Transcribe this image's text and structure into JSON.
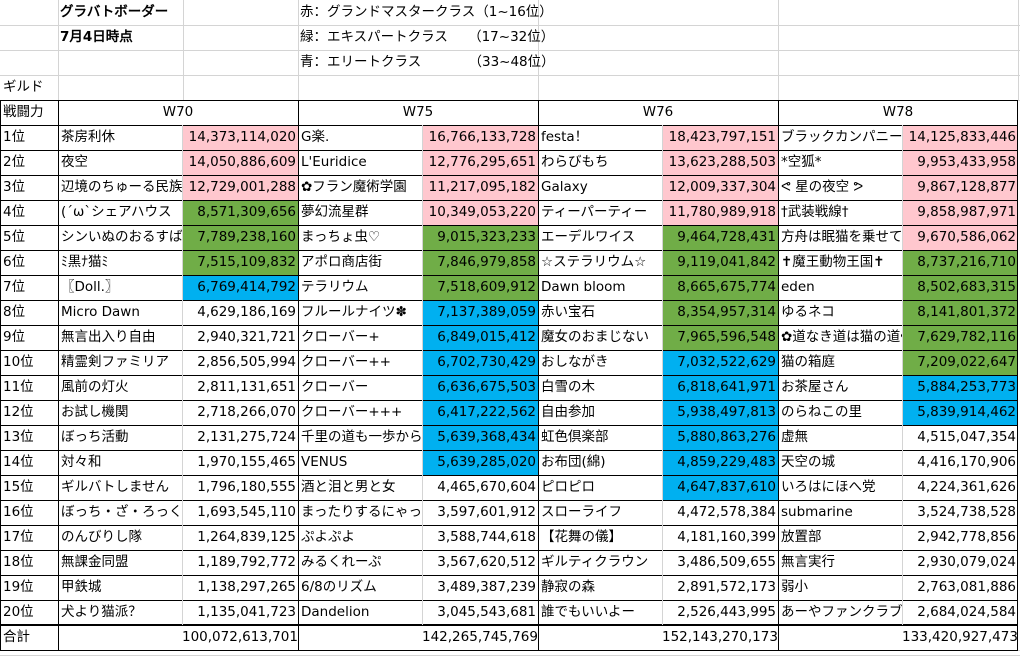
{
  "header": {
    "title": "グラバトボーダー",
    "date": "7月4日時点",
    "legend": [
      {
        "label": "赤：グランドマスタークラス（1~16位）"
      },
      {
        "label": "緑：エキスパートクラス　　（17~32位）"
      },
      {
        "label": "青：エリートクラス　　　　（33~48位）"
      }
    ]
  },
  "guild_label": "ギルド",
  "power_label": "戦闘力",
  "total_label": "合計",
  "columns": [
    "W70",
    "W75",
    "W76",
    "W78"
  ],
  "ranks": [
    "1位",
    "2位",
    "3位",
    "4位",
    "5位",
    "6位",
    "7位",
    "8位",
    "9位",
    "10位",
    "11位",
    "12位",
    "13位",
    "14位",
    "15位",
    "16位",
    "17位",
    "18位",
    "19位",
    "20位"
  ],
  "colors": {
    "red": "#ffc7ce",
    "green": "#70ad47",
    "blue": "#00b0f0"
  },
  "tables": [
    {
      "world": "W70",
      "rows": [
        {
          "name": "茶房利休",
          "value": "14,373,114,020",
          "tier": "red"
        },
        {
          "name": "夜空",
          "value": "14,050,886,609",
          "tier": "red"
        },
        {
          "name": "辺境のちゅーる民族",
          "value": "12,729,001,288",
          "tier": "red"
        },
        {
          "name": "(´ω`シェアハウス",
          "value": "8,571,309,656",
          "tier": "green"
        },
        {
          "name": "シンいぬのおるすばん",
          "value": "7,789,238,160",
          "tier": "green"
        },
        {
          "name": "ﾐ黒ﾅ猫ﾐ",
          "value": "7,515,109,832",
          "tier": "green"
        },
        {
          "name": "〖Doll.〗",
          "value": "6,769,414,792",
          "tier": "blue"
        },
        {
          "name": "Micro Dawn",
          "value": "4,629,186,169",
          "tier": ""
        },
        {
          "name": "無言出入り自由",
          "value": "2,940,321,721",
          "tier": ""
        },
        {
          "name": "精霊剣ファミリア",
          "value": "2,856,505,994",
          "tier": ""
        },
        {
          "name": "風前の灯火",
          "value": "2,811,131,651",
          "tier": ""
        },
        {
          "name": "お試し機関",
          "value": "2,718,266,070",
          "tier": ""
        },
        {
          "name": "ぼっち活動",
          "value": "2,131,275,724",
          "tier": ""
        },
        {
          "name": "対々和",
          "value": "1,970,155,465",
          "tier": ""
        },
        {
          "name": "ギルバトしません",
          "value": "1,796,180,555",
          "tier": ""
        },
        {
          "name": "ぼっち・ざ・ろっく再",
          "value": "1,693,545,110",
          "tier": ""
        },
        {
          "name": "のんびりし隊",
          "value": "1,264,839,125",
          "tier": ""
        },
        {
          "name": "無課金同盟",
          "value": "1,189,792,772",
          "tier": ""
        },
        {
          "name": "甲鉄城",
          "value": "1,138,297,265",
          "tier": ""
        },
        {
          "name": "犬より猫派？",
          "value": "1,135,041,723",
          "tier": ""
        }
      ],
      "total": "100,072,613,701"
    },
    {
      "world": "W75",
      "rows": [
        {
          "name": "G楽.",
          "value": "16,766,133,728",
          "tier": "red"
        },
        {
          "name": "L'Euridice",
          "value": "12,776,295,651",
          "tier": "red"
        },
        {
          "name": "✿フラン魔術学園",
          "value": "11,217,095,182",
          "tier": "red"
        },
        {
          "name": "夢幻流星群",
          "value": "10,349,053,220",
          "tier": "red"
        },
        {
          "name": "まっちょ虫♡",
          "value": "9,015,323,233",
          "tier": "green"
        },
        {
          "name": "アポロ商店街",
          "value": "7,846,979,858",
          "tier": "green"
        },
        {
          "name": "テラリウム",
          "value": "7,518,609,912",
          "tier": "green"
        },
        {
          "name": "フルールナイツ✽",
          "value": "7,137,389,059",
          "tier": "blue"
        },
        {
          "name": "クローバー+",
          "value": "6,849,015,412",
          "tier": "blue"
        },
        {
          "name": "クローバー++",
          "value": "6,702,730,429",
          "tier": "blue"
        },
        {
          "name": "クローバー",
          "value": "6,636,675,503",
          "tier": "blue"
        },
        {
          "name": "クローバー+++",
          "value": "6,417,222,562",
          "tier": "blue"
        },
        {
          "name": "千里の道も一歩から",
          "value": "5,639,368,434",
          "tier": "blue"
        },
        {
          "name": "VENUS",
          "value": "5,639,285,020",
          "tier": "blue"
        },
        {
          "name": "酒と泪と男と女",
          "value": "4,465,670,604",
          "tier": ""
        },
        {
          "name": "まったりするにゃっ♪",
          "value": "3,597,601,912",
          "tier": ""
        },
        {
          "name": "ぷよぷよ",
          "value": "3,588,744,618",
          "tier": ""
        },
        {
          "name": "みるくれーぷ",
          "value": "3,567,620,512",
          "tier": ""
        },
        {
          "name": "6/8のリズム",
          "value": "3,489,387,239",
          "tier": ""
        },
        {
          "name": "Dandelion",
          "value": "3,045,543,681",
          "tier": ""
        }
      ],
      "total": "142,265,745,769"
    },
    {
      "world": "W76",
      "rows": [
        {
          "name": "festa！",
          "value": "18,423,797,151",
          "tier": "red"
        },
        {
          "name": "わらびもち",
          "value": "13,623,288,503",
          "tier": "red"
        },
        {
          "name": "Galaxy",
          "value": "12,009,337,304",
          "tier": "red"
        },
        {
          "name": "ティーパーティー",
          "value": "11,780,989,918",
          "tier": "red"
        },
        {
          "name": "エーデルワイス",
          "value": "9,464,728,431",
          "tier": "green"
        },
        {
          "name": "☆ステラリウム☆",
          "value": "9,119,041,842",
          "tier": "green"
        },
        {
          "name": "Dawn bloom",
          "value": "8,665,675,774",
          "tier": "green"
        },
        {
          "name": "赤い宝石",
          "value": "8,354,957,314",
          "tier": "green"
        },
        {
          "name": "魔女のおまじない",
          "value": "7,965,596,548",
          "tier": "green"
        },
        {
          "name": "おしながき",
          "value": "7,032,522,629",
          "tier": "blue"
        },
        {
          "name": "白雪の木",
          "value": "6,818,641,971",
          "tier": "blue"
        },
        {
          "name": "自由参加",
          "value": "5,938,497,813",
          "tier": "blue"
        },
        {
          "name": "虹色倶楽部",
          "value": "5,880,863,276",
          "tier": "blue"
        },
        {
          "name": "お布団(綿)",
          "value": "4,859,229,483",
          "tier": "blue"
        },
        {
          "name": "ピロピロ",
          "value": "4,647,837,610",
          "tier": "blue"
        },
        {
          "name": "スローライフ",
          "value": "4,472,578,384",
          "tier": ""
        },
        {
          "name": "【花舞の儀】",
          "value": "4,181,160,399",
          "tier": ""
        },
        {
          "name": "ギルティクラウン",
          "value": "3,486,509,655",
          "tier": ""
        },
        {
          "name": "静寂の森",
          "value": "2,891,572,173",
          "tier": ""
        },
        {
          "name": "誰でもいいよー",
          "value": "2,526,443,995",
          "tier": ""
        }
      ],
      "total": "152,143,270,173"
    },
    {
      "world": "W78",
      "rows": [
        {
          "name": "ブラックカンパニー",
          "value": "14,125,833,446",
          "tier": "red"
        },
        {
          "name": "*空狐*",
          "value": "9,953,433,958",
          "tier": "red"
        },
        {
          "name": "ᕙ 星の夜空 ᕗ",
          "value": "9,867,128,877",
          "tier": "red"
        },
        {
          "name": "†武装戦線†",
          "value": "9,858,987,971",
          "tier": "red"
        },
        {
          "name": "方舟は眠猫を乗せて",
          "value": "9,670,586,062",
          "tier": "red"
        },
        {
          "name": "✝魔王動物王国✝",
          "value": "8,737,216,710",
          "tier": "green"
        },
        {
          "name": "eden",
          "value": "8,502,683,315",
          "tier": "green"
        },
        {
          "name": "ゆるネコ",
          "value": "8,141,801,372",
          "tier": "green"
        },
        {
          "name": "✿道なき道は猫の道✿",
          "value": "7,629,782,116",
          "tier": "green"
        },
        {
          "name": "猫の箱庭",
          "value": "7,209,022,647",
          "tier": "green"
        },
        {
          "name": "お茶屋さん",
          "value": "5,884,253,773",
          "tier": "blue"
        },
        {
          "name": "のらねこの里",
          "value": "5,839,914,462",
          "tier": "blue"
        },
        {
          "name": "虚無",
          "value": "4,515,047,354",
          "tier": ""
        },
        {
          "name": "天空の城",
          "value": "4,416,170,906",
          "tier": ""
        },
        {
          "name": "いろはにほへ党",
          "value": "4,224,361,626",
          "tier": ""
        },
        {
          "name": "submarine",
          "value": "3,524,738,528",
          "tier": ""
        },
        {
          "name": "放置部",
          "value": "2,942,778,856",
          "tier": ""
        },
        {
          "name": "無言実行",
          "value": "2,930,079,024",
          "tier": ""
        },
        {
          "name": "弱小",
          "value": "2,763,081,886",
          "tier": ""
        },
        {
          "name": "あーやファンクラブ",
          "value": "2,684,024,584",
          "tier": ""
        }
      ],
      "total": "133,420,927,473"
    }
  ]
}
